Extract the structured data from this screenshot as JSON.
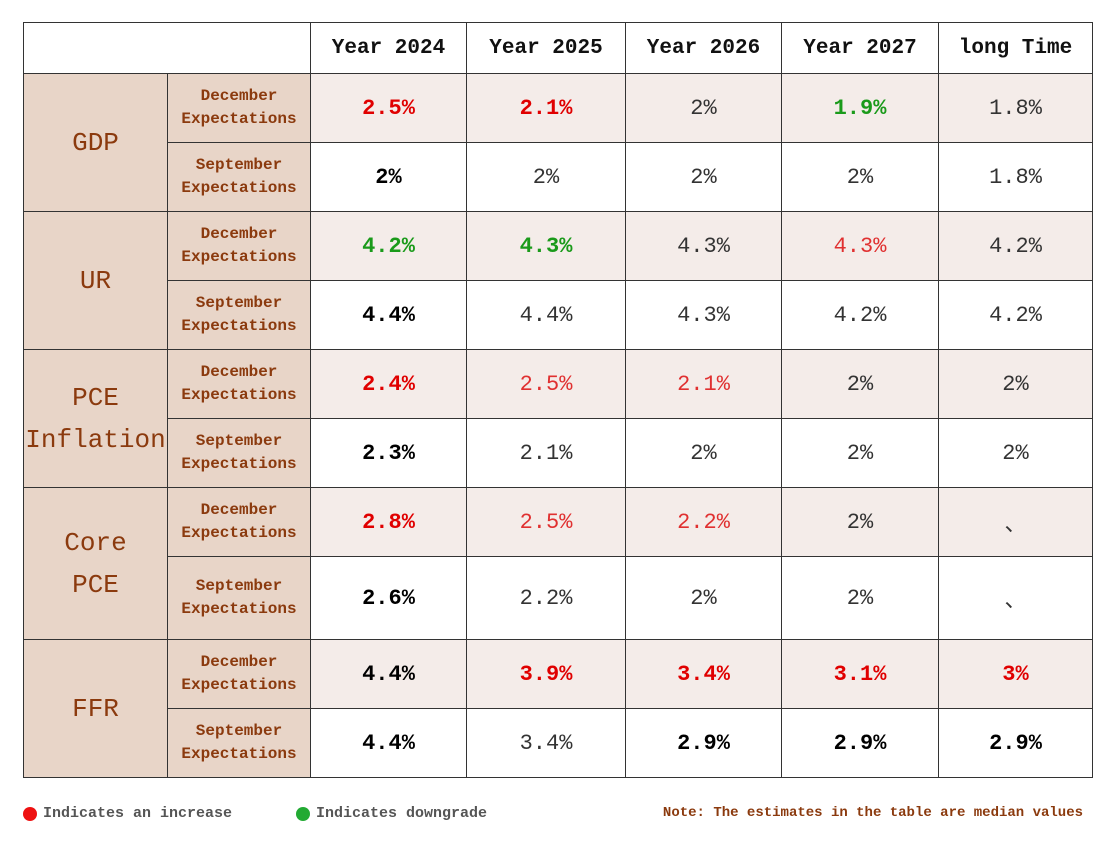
{
  "table": {
    "header": [
      "Year 2024",
      "Year 2025",
      "Year 2026",
      "Year 2027",
      "long Time"
    ],
    "groups": [
      {
        "label": [
          "GDP"
        ],
        "rows": [
          {
            "label": "December Expectations",
            "cells": [
              {
                "text": "2.5%",
                "color": "#e00000",
                "bold": true
              },
              {
                "text": "2.1%",
                "color": "#e00000",
                "bold": true
              },
              {
                "text": "2%",
                "color": "#333333",
                "bold": false
              },
              {
                "text": "1.9%",
                "color": "#1a9a1a",
                "bold": true
              },
              {
                "text": "1.8%",
                "color": "#333333",
                "bold": false
              }
            ]
          },
          {
            "label": "September Expectations",
            "cells": [
              {
                "text": "2%",
                "color": "#000000",
                "bold": true
              },
              {
                "text": "2%",
                "color": "#333333",
                "bold": false
              },
              {
                "text": "2%",
                "color": "#333333",
                "bold": false
              },
              {
                "text": "2%",
                "color": "#333333",
                "bold": false
              },
              {
                "text": "1.8%",
                "color": "#333333",
                "bold": false
              }
            ]
          }
        ]
      },
      {
        "label": [
          "UR"
        ],
        "rows": [
          {
            "label": "December Expectations",
            "cells": [
              {
                "text": "4.2%",
                "color": "#1a9a1a",
                "bold": true
              },
              {
                "text": "4.3%",
                "color": "#1a9a1a",
                "bold": true
              },
              {
                "text": "4.3%",
                "color": "#333333",
                "bold": false
              },
              {
                "text": "4.3%",
                "color": "#e03030",
                "bold": false
              },
              {
                "text": "4.2%",
                "color": "#333333",
                "bold": false
              }
            ]
          },
          {
            "label": "September Expectations",
            "cells": [
              {
                "text": "4.4%",
                "color": "#000000",
                "bold": true
              },
              {
                "text": "4.4%",
                "color": "#333333",
                "bold": false
              },
              {
                "text": "4.3%",
                "color": "#333333",
                "bold": false
              },
              {
                "text": "4.2%",
                "color": "#333333",
                "bold": false
              },
              {
                "text": "4.2%",
                "color": "#333333",
                "bold": false
              }
            ]
          }
        ]
      },
      {
        "label": [
          "PCE",
          "Inflation"
        ],
        "rows": [
          {
            "label": "December Expectations",
            "cells": [
              {
                "text": "2.4%",
                "color": "#e00000",
                "bold": true
              },
              {
                "text": "2.5%",
                "color": "#e03030",
                "bold": false
              },
              {
                "text": "2.1%",
                "color": "#e03030",
                "bold": false
              },
              {
                "text": "2%",
                "color": "#333333",
                "bold": false
              },
              {
                "text": "2%",
                "color": "#333333",
                "bold": false
              }
            ]
          },
          {
            "label": "September Expectations",
            "cells": [
              {
                "text": "2.3%",
                "color": "#000000",
                "bold": true
              },
              {
                "text": "2.1%",
                "color": "#333333",
                "bold": false
              },
              {
                "text": "2%",
                "color": "#333333",
                "bold": false
              },
              {
                "text": "2%",
                "color": "#333333",
                "bold": false
              },
              {
                "text": "2%",
                "color": "#333333",
                "bold": false
              }
            ]
          }
        ]
      },
      {
        "label": [
          "Core",
          "PCE"
        ],
        "rows": [
          {
            "label": "December Expectations",
            "cells": [
              {
                "text": "2.8%",
                "color": "#e00000",
                "bold": true
              },
              {
                "text": "2.5%",
                "color": "#e03030",
                "bold": false
              },
              {
                "text": "2.2%",
                "color": "#e03030",
                "bold": false
              },
              {
                "text": "2%",
                "color": "#333333",
                "bold": false
              },
              {
                "text": "、",
                "color": "#333333",
                "bold": false
              }
            ]
          },
          {
            "label": "September Expectations",
            "cells": [
              {
                "text": "2.6%",
                "color": "#000000",
                "bold": true
              },
              {
                "text": "2.2%",
                "color": "#333333",
                "bold": false
              },
              {
                "text": "2%",
                "color": "#333333",
                "bold": false
              },
              {
                "text": "2%",
                "color": "#333333",
                "bold": false
              },
              {
                "text": "、",
                "color": "#333333",
                "bold": false
              }
            ]
          }
        ]
      },
      {
        "label": [
          "FFR"
        ],
        "rows": [
          {
            "label": "December Expectations",
            "cells": [
              {
                "text": "4.4%",
                "color": "#000000",
                "bold": true
              },
              {
                "text": "3.9%",
                "color": "#e00000",
                "bold": true
              },
              {
                "text": "3.4%",
                "color": "#e00000",
                "bold": true
              },
              {
                "text": "3.1%",
                "color": "#e00000",
                "bold": true
              },
              {
                "text": "3%",
                "color": "#e00000",
                "bold": true
              }
            ]
          },
          {
            "label": "September Expectations",
            "cells": [
              {
                "text": "4.4%",
                "color": "#000000",
                "bold": true
              },
              {
                "text": "3.4%",
                "color": "#333333",
                "bold": false
              },
              {
                "text": "2.9%",
                "color": "#000000",
                "bold": true
              },
              {
                "text": "2.9%",
                "color": "#000000",
                "bold": true
              },
              {
                "text": "2.9%",
                "color": "#000000",
                "bold": true
              }
            ]
          }
        ]
      }
    ]
  },
  "legend": [
    {
      "color": "#ee1111",
      "text": "Indicates an increase"
    },
    {
      "color": "#22aa33",
      "text": "Indicates downgrade"
    }
  ],
  "note": "Note: The estimates in the table are median values"
}
